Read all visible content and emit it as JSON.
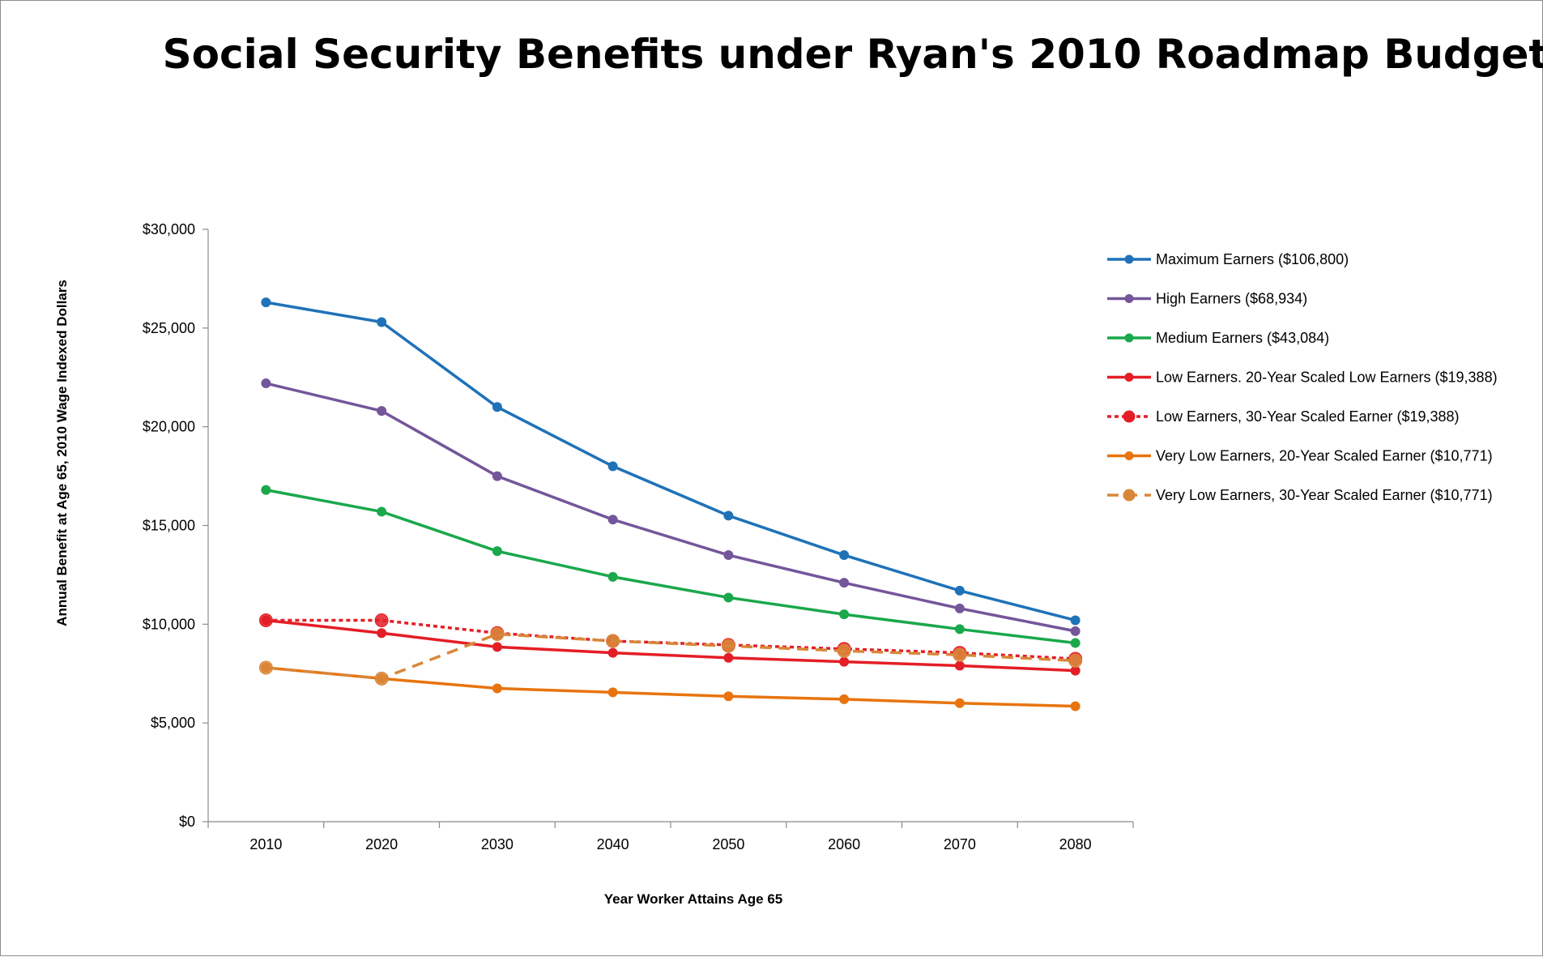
{
  "chart_data": {
    "type": "line",
    "title": "Social Security Benefits under Ryan's 2010 Roadmap Budget",
    "xlabel": "Year Worker Attains Age 65",
    "ylabel": "Annual Benefit at Age 65, 2010 Wage Indexed Dollars",
    "x": [
      2010,
      2020,
      2030,
      2040,
      2050,
      2060,
      2070,
      2080
    ],
    "x_tick_labels": [
      "2010",
      "2020",
      "2030",
      "2040",
      "2050",
      "2060",
      "2070",
      "2080"
    ],
    "ylim": [
      0,
      30000
    ],
    "y_ticks": [
      0,
      5000,
      10000,
      15000,
      20000,
      25000,
      30000
    ],
    "y_tick_labels": [
      "$0",
      "$5,000",
      "$10,000",
      "$15,000",
      "$20,000",
      "$25,000",
      "$30,000"
    ],
    "grid": false,
    "legend_position": "right",
    "series": [
      {
        "name": "Maximum Earners ($106,800)",
        "color": "#1f72b8",
        "dash": "solid",
        "marker_size": "small",
        "values": [
          26300,
          25300,
          21000,
          18000,
          15500,
          13500,
          11700,
          10200
        ]
      },
      {
        "name": "High Earners ($68,934)",
        "color": "#74569a",
        "dash": "solid",
        "marker_size": "small",
        "values": [
          22200,
          20800,
          17500,
          15300,
          13500,
          12100,
          10800,
          9650
        ]
      },
      {
        "name": "Medium Earners ($43,084)",
        "color": "#1aa84b",
        "dash": "solid",
        "marker_size": "small",
        "values": [
          16800,
          15700,
          13700,
          12400,
          11350,
          10500,
          9750,
          9050
        ]
      },
      {
        "name": "Low Earners. 20-Year Scaled Low Earners ($19,388)",
        "color": "#e41e26",
        "dash": "solid",
        "marker_size": "small",
        "values": [
          10200,
          9550,
          8850,
          8550,
          8300,
          8100,
          7900,
          7650
        ]
      },
      {
        "name": "Low Earners, 30-Year Scaled Earner ($19,388)",
        "color": "#e41e26",
        "dash": "dotted",
        "marker_size": "large",
        "values": [
          10200,
          10200,
          9550,
          9150,
          8950,
          8750,
          8550,
          8250
        ]
      },
      {
        "name": "Very Low Earners, 20-Year Scaled Earner ($10,771)",
        "color": "#e8740f",
        "dash": "solid",
        "marker_size": "small",
        "values": [
          7800,
          7250,
          6750,
          6550,
          6350,
          6200,
          6000,
          5850
        ]
      },
      {
        "name": "Very Low Earners, 30-Year Scaled Earner ($10,771)",
        "color": "#d8873a",
        "dash": "dashed",
        "marker_size": "large",
        "values": [
          7800,
          7250,
          9500,
          9150,
          8900,
          8650,
          8450,
          8150
        ]
      }
    ]
  }
}
